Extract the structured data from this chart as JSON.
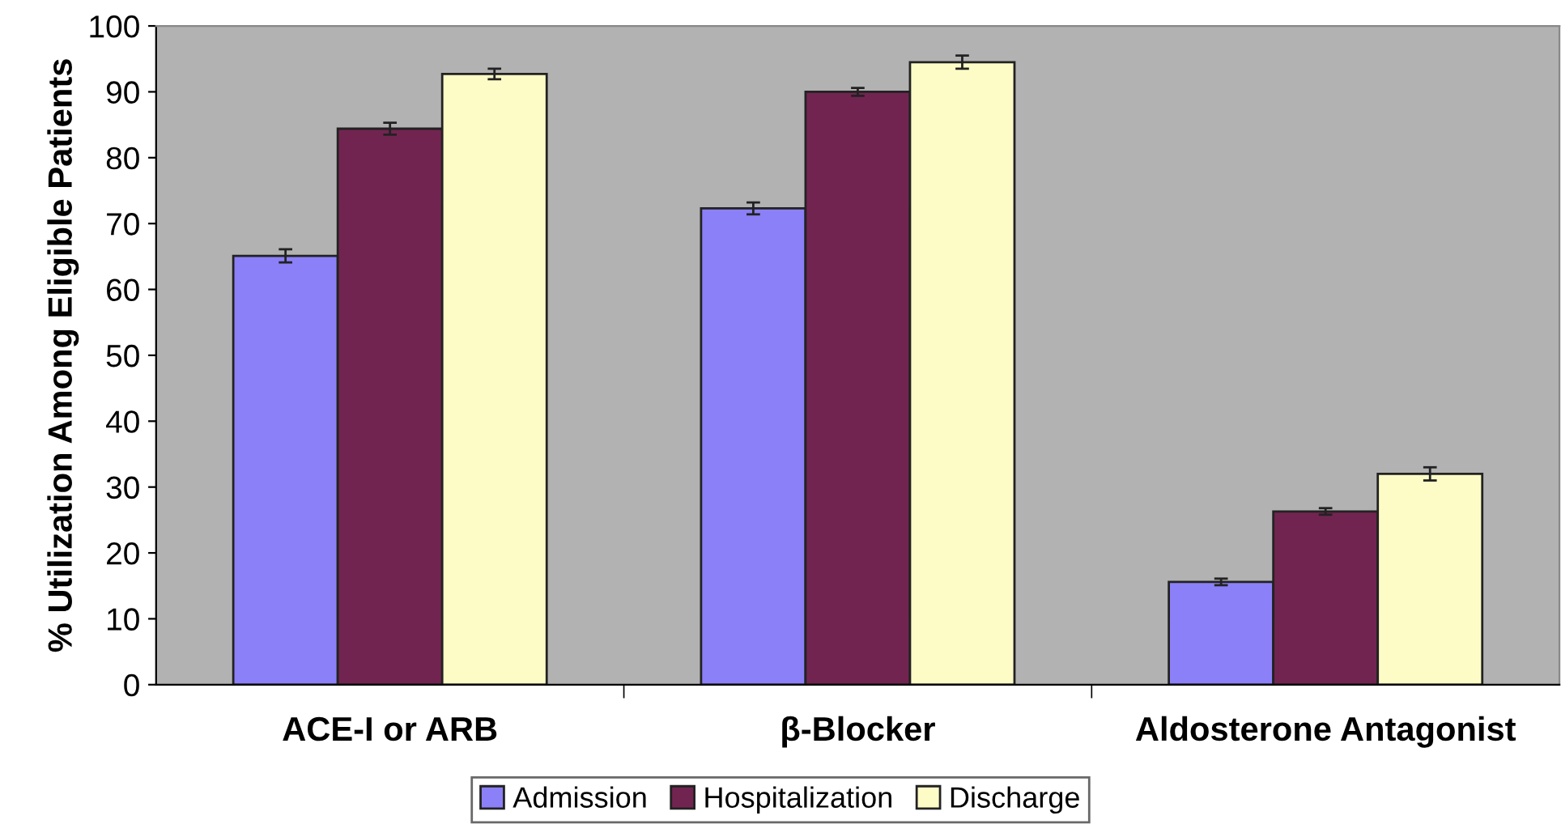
{
  "chart_data": {
    "type": "bar",
    "ylabel": "% Utilization Among Eligible Patients",
    "categories": [
      "ACE-I or ARB",
      "β-Blocker",
      "Aldosterone Antagonist"
    ],
    "series": [
      {
        "name": "Admission",
        "color": "#8c80f8",
        "values": [
          65.1,
          72.3,
          15.6
        ],
        "errors": [
          1.0,
          0.9,
          0.5
        ]
      },
      {
        "name": "Hospitalization",
        "color": "#722451",
        "values": [
          84.4,
          90.0,
          26.3
        ],
        "errors": [
          0.9,
          0.6,
          0.5
        ]
      },
      {
        "name": "Discharge",
        "color": "#fdfcc6",
        "values": [
          92.7,
          94.5,
          32.0
        ],
        "errors": [
          0.8,
          1.0,
          1.0
        ]
      }
    ],
    "ylim": [
      0,
      100
    ],
    "yticks": [
      0,
      10,
      20,
      30,
      40,
      50,
      60,
      70,
      80,
      90,
      100
    ],
    "legend": "bottom"
  }
}
